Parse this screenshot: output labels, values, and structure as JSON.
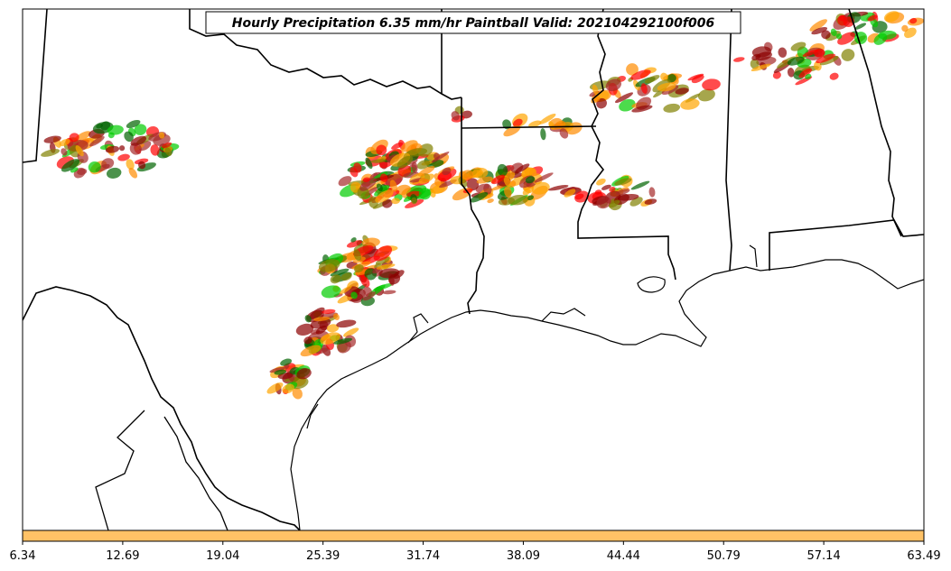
{
  "title": "Hourly Precipitation 6.35 mm/hr Paintball Valid: 202104292100f006",
  "colorbar": {
    "color": "#ffc266",
    "ticks": [
      "6.34",
      "12.69",
      "19.04",
      "25.39",
      "31.74",
      "38.09",
      "44.44",
      "50.79",
      "57.14",
      "63.49"
    ]
  },
  "colors": {
    "map_lines": "#000000",
    "paintball_members": [
      "#ff0000",
      "#ff8c00",
      "#00cc00",
      "#8b0000",
      "#808000",
      "#006400",
      "#ffa500",
      "#a52a2a"
    ]
  }
}
